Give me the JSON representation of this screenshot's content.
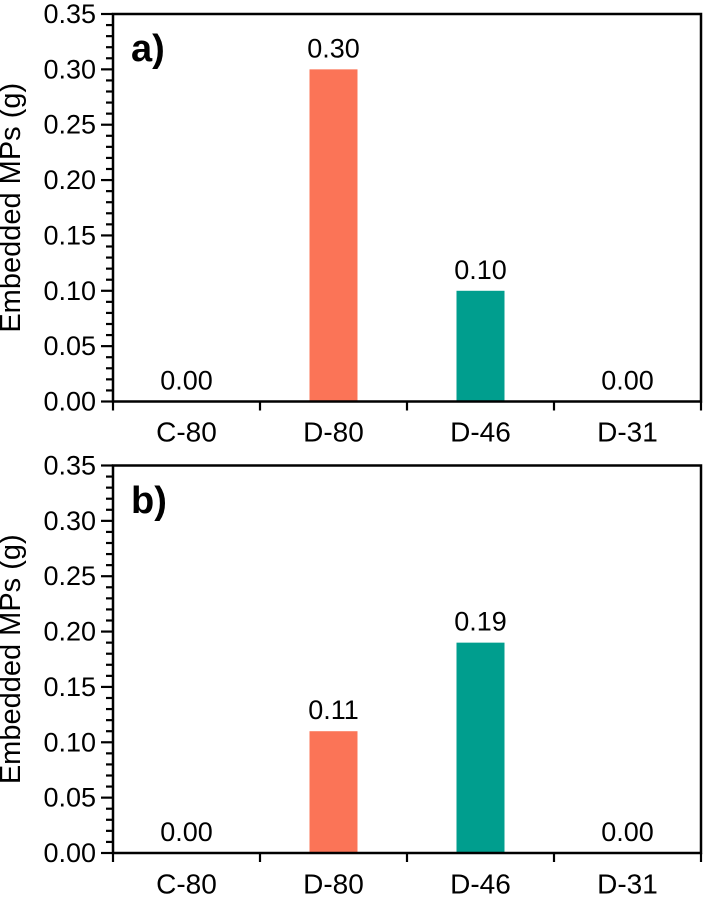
{
  "figure": {
    "background": "#ffffff",
    "text_color": "#000000",
    "axis_color": "#000000"
  },
  "chart_data": [
    {
      "type": "bar",
      "panel_label": "a)",
      "categories": [
        "C-80",
        "D-80",
        "D-46",
        "D-31"
      ],
      "values": [
        0.0,
        0.3,
        0.1,
        0.0
      ],
      "value_labels": [
        "0.00",
        "0.30",
        "0.10",
        "0.00"
      ],
      "bar_colors": [
        null,
        "#fb7457",
        "#009e8e",
        null
      ],
      "title": "",
      "xlabel": "",
      "ylabel": "Embedded MPs (g)",
      "ylim": [
        0,
        0.35
      ],
      "ytick_step": 0.05,
      "yminor_step": 0.01,
      "ytick_labels": [
        "0.00",
        "0.05",
        "0.10",
        "0.15",
        "0.20",
        "0.25",
        "0.30",
        "0.35"
      ],
      "grid": false,
      "legend": null
    },
    {
      "type": "bar",
      "panel_label": "b)",
      "categories": [
        "C-80",
        "D-80",
        "D-46",
        "D-31"
      ],
      "values": [
        0.0,
        0.11,
        0.19,
        0.0
      ],
      "value_labels": [
        "0.00",
        "0.11",
        "0.19",
        "0.00"
      ],
      "bar_colors": [
        null,
        "#fb7457",
        "#009e8e",
        null
      ],
      "title": "",
      "xlabel": "",
      "ylabel": "Embedded MPs (g)",
      "ylim": [
        0,
        0.35
      ],
      "ytick_step": 0.05,
      "yminor_step": 0.01,
      "ytick_labels": [
        "0.00",
        "0.05",
        "0.10",
        "0.15",
        "0.20",
        "0.25",
        "0.30",
        "0.35"
      ],
      "grid": false,
      "legend": null
    }
  ]
}
